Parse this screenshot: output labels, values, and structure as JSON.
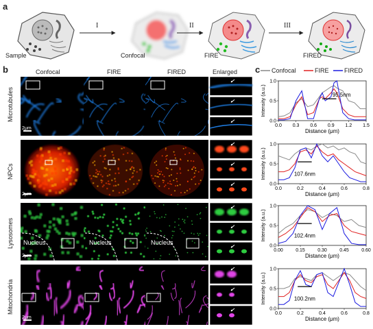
{
  "panel_a": {
    "letter": "a",
    "steps": [
      "Sample",
      "Confocal",
      "FIRE",
      "FIRED"
    ],
    "arrows": [
      "I",
      "II",
      "III"
    ]
  },
  "panel_b": {
    "letter": "b",
    "columns": [
      "Confocal",
      "FIRE",
      "FIRED",
      "Enlarged"
    ],
    "rows": [
      "Microtubules",
      "NPCs",
      "Lysosomes",
      "Mitochondria"
    ],
    "scalebar": "2μm",
    "nucleus_label": "Nucleus",
    "colors": {
      "microtubules": "#1e7be0",
      "npcs": "#ff4a1a",
      "lysosomes": "#2ecc40",
      "mitochondria": "#e044e6"
    }
  },
  "panel_c": {
    "letter": "c",
    "legend": [
      {
        "name": "Confocal",
        "color": "#888888"
      },
      {
        "name": "FIRE",
        "color": "#e02020"
      },
      {
        "name": "FIRED",
        "color": "#1a1ae0"
      }
    ]
  },
  "chart_data": [
    {
      "type": "line",
      "xlabel": "Distance (μm)",
      "ylabel": "Intensity (a.u.)",
      "xlim": [
        0,
        1.5
      ],
      "ylim": [
        0,
        1.0
      ],
      "xticks": [
        "0.0",
        "0.3",
        "0.6",
        "0.9",
        "1.2",
        "1.5"
      ],
      "yticks": [
        "0.0",
        "0.5",
        "1.0"
      ],
      "annotation": "95.5nm",
      "x": [
        0,
        0.1,
        0.2,
        0.3,
        0.4,
        0.5,
        0.6,
        0.7,
        0.75,
        0.8,
        0.9,
        0.95,
        1.0,
        1.1,
        1.2,
        1.3,
        1.4,
        1.5
      ],
      "series": [
        {
          "name": "Confocal",
          "values": [
            0.1,
            0.12,
            0.2,
            0.45,
            0.55,
            0.35,
            0.4,
            0.6,
            0.7,
            0.75,
            0.85,
            0.88,
            0.82,
            0.75,
            0.5,
            0.45,
            0.3,
            0.3
          ]
        },
        {
          "name": "FIRE",
          "values": [
            0.05,
            0.05,
            0.1,
            0.4,
            0.6,
            0.15,
            0.2,
            0.55,
            0.6,
            0.55,
            0.7,
            0.8,
            0.7,
            0.3,
            0.15,
            0.1,
            0.1,
            0.1
          ]
        },
        {
          "name": "FIRED",
          "values": [
            0.02,
            0.02,
            0.05,
            0.5,
            0.75,
            0.05,
            0.05,
            0.55,
            0.7,
            0.5,
            0.6,
            0.95,
            1.0,
            0.2,
            0.05,
            0.02,
            0.02,
            0.02
          ]
        }
      ]
    },
    {
      "type": "line",
      "xlabel": "Distance (μm)",
      "ylabel": "Intensity (a.u.)",
      "xlim": [
        0,
        0.8
      ],
      "ylim": [
        0,
        1.0
      ],
      "xticks": [
        "0.0",
        "0.2",
        "0.4",
        "0.6",
        "0.8"
      ],
      "yticks": [
        "0.0",
        "0.5",
        "1.0"
      ],
      "annotation": "107.6nm",
      "x": [
        0,
        0.05,
        0.1,
        0.15,
        0.2,
        0.25,
        0.3,
        0.35,
        0.4,
        0.45,
        0.5,
        0.55,
        0.6,
        0.65,
        0.7,
        0.75,
        0.8
      ],
      "series": [
        {
          "name": "Confocal",
          "values": [
            0.7,
            0.65,
            0.6,
            0.75,
            0.85,
            0.9,
            0.85,
            0.95,
            1.0,
            0.9,
            0.95,
            0.85,
            0.9,
            0.8,
            0.75,
            0.55,
            0.5
          ]
        },
        {
          "name": "FIRE",
          "values": [
            0.3,
            0.3,
            0.35,
            0.5,
            0.8,
            0.85,
            0.75,
            0.95,
            0.8,
            0.7,
            0.75,
            0.6,
            0.5,
            0.4,
            0.3,
            0.25,
            0.2
          ]
        },
        {
          "name": "FIRED",
          "values": [
            0.1,
            0.1,
            0.15,
            0.4,
            0.85,
            0.9,
            0.65,
            1.0,
            0.7,
            0.55,
            0.7,
            0.5,
            0.3,
            0.15,
            0.1,
            0.05,
            0.05
          ]
        }
      ]
    },
    {
      "type": "line",
      "xlabel": "Distance (μm)",
      "ylabel": "Intensity (a.u.)",
      "xlim": [
        0,
        0.6
      ],
      "ylim": [
        0,
        1.0
      ],
      "xticks": [
        "0.00",
        "0.15",
        "0.30",
        "0.45",
        "0.60"
      ],
      "yticks": [
        "0.0",
        "0.5",
        "1.0"
      ],
      "annotation": "102.4nm",
      "x": [
        0,
        0.05,
        0.1,
        0.15,
        0.2,
        0.25,
        0.3,
        0.35,
        0.4,
        0.45,
        0.5,
        0.55,
        0.6
      ],
      "series": [
        {
          "name": "Confocal",
          "values": [
            0.3,
            0.45,
            0.55,
            0.75,
            0.9,
            0.85,
            0.7,
            0.8,
            0.75,
            0.6,
            0.65,
            0.5,
            0.45
          ]
        },
        {
          "name": "FIRE",
          "values": [
            0.2,
            0.3,
            0.45,
            0.7,
            0.95,
            0.85,
            0.6,
            0.75,
            0.8,
            0.5,
            0.35,
            0.3,
            0.25
          ]
        },
        {
          "name": "FIRED",
          "values": [
            0.05,
            0.1,
            0.3,
            0.75,
            1.0,
            0.9,
            0.4,
            0.8,
            0.95,
            0.3,
            0.05,
            0.02,
            0.02
          ]
        }
      ]
    },
    {
      "type": "line",
      "xlabel": "Distance (μm)",
      "ylabel": "Intensity (a.u.)",
      "xlim": [
        0,
        0.8
      ],
      "ylim": [
        0,
        1.0
      ],
      "xticks": [
        "0.0",
        "0.2",
        "0.4",
        "0.6",
        "0.8"
      ],
      "yticks": [
        "0.0",
        "0.5",
        "1.0"
      ],
      "annotation": "100.2nm",
      "x": [
        0,
        0.05,
        0.1,
        0.15,
        0.2,
        0.25,
        0.3,
        0.35,
        0.4,
        0.45,
        0.5,
        0.55,
        0.6,
        0.65,
        0.7,
        0.75,
        0.8
      ],
      "series": [
        {
          "name": "Confocal",
          "values": [
            0.5,
            0.5,
            0.55,
            0.75,
            0.8,
            0.75,
            0.7,
            0.85,
            0.9,
            0.8,
            0.7,
            0.8,
            0.9,
            0.85,
            0.7,
            0.55,
            0.45
          ]
        },
        {
          "name": "FIRE",
          "values": [
            0.3,
            0.3,
            0.4,
            0.7,
            0.85,
            0.7,
            0.65,
            0.8,
            0.85,
            0.6,
            0.5,
            0.7,
            0.9,
            0.7,
            0.4,
            0.3,
            0.25
          ]
        },
        {
          "name": "FIRED",
          "values": [
            0.1,
            0.1,
            0.2,
            0.7,
            0.95,
            0.6,
            0.55,
            0.85,
            0.9,
            0.4,
            0.3,
            0.65,
            1.0,
            0.6,
            0.15,
            0.05,
            0.05
          ]
        }
      ]
    }
  ]
}
